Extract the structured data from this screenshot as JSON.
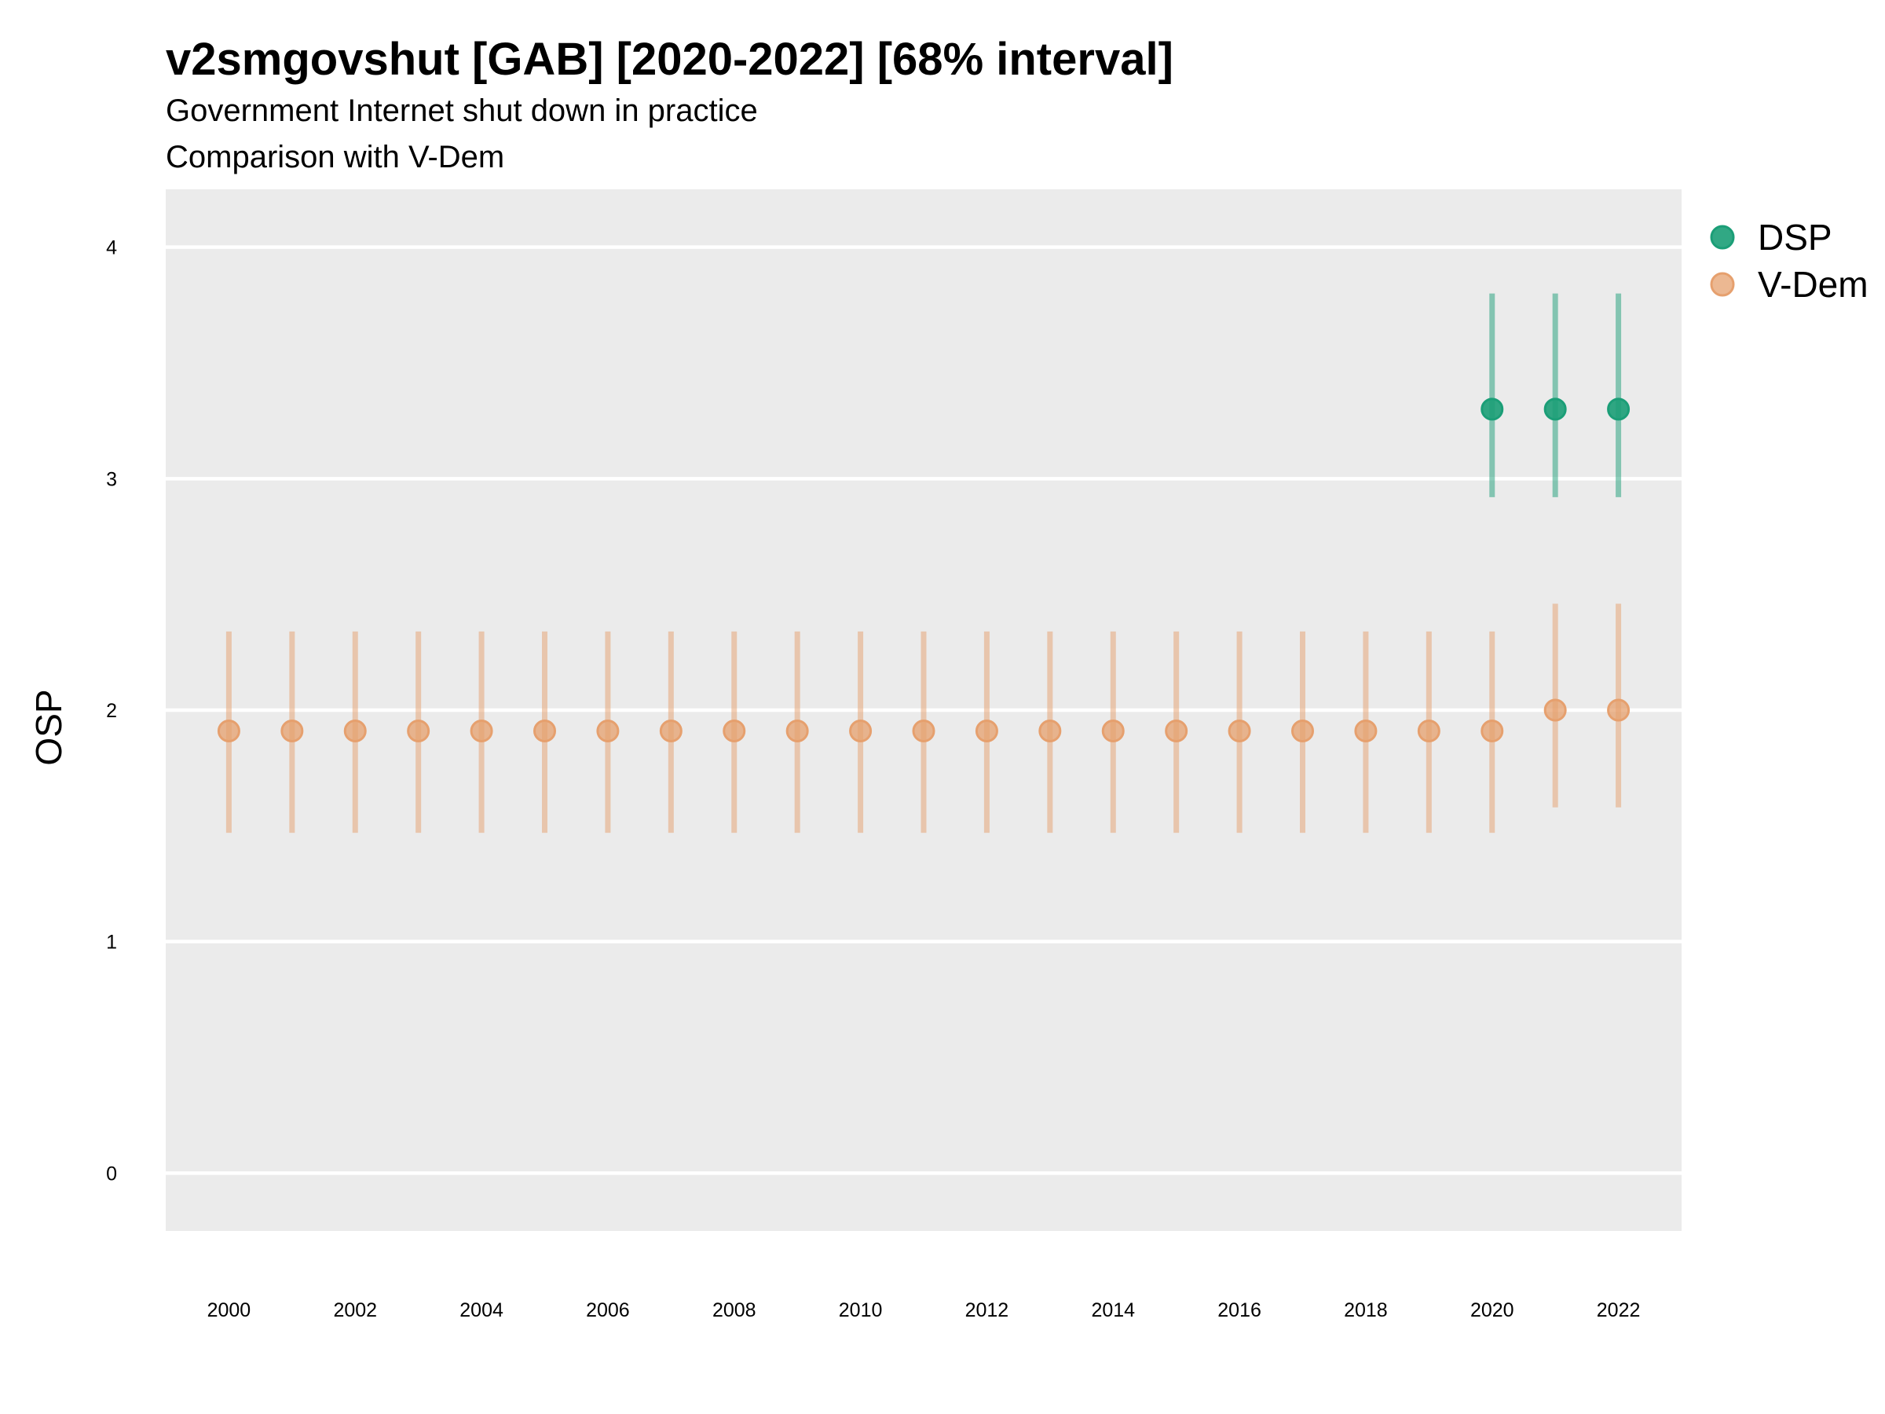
{
  "chart_data": {
    "type": "scatter",
    "title": "v2smgovshut [GAB] [2020-2022] [68% interval]",
    "subtitle_lines": [
      "Government Internet shut down in practice",
      "Comparison with V-Dem"
    ],
    "xlabel": "",
    "ylabel": "OSP",
    "x_ticks": [
      "2000",
      "2002",
      "2004",
      "2006",
      "2008",
      "2010",
      "2012",
      "2014",
      "2016",
      "2018",
      "2020",
      "2022"
    ],
    "y_ticks": [
      "0",
      "1",
      "2",
      "3",
      "4"
    ],
    "xlim": [
      1999,
      2023
    ],
    "ylim": [
      -0.25,
      4.25
    ],
    "grid": true,
    "legend_position": "right",
    "series": [
      {
        "name": "DSP",
        "color": "#1b9e77",
        "points": [
          {
            "x": 2020,
            "y": 3.3,
            "low": 2.92,
            "high": 3.8
          },
          {
            "x": 2021,
            "y": 3.3,
            "low": 2.92,
            "high": 3.8
          },
          {
            "x": 2022,
            "y": 3.3,
            "low": 2.92,
            "high": 3.8
          }
        ]
      },
      {
        "name": "V-Dem",
        "color": "#e6a06e",
        "points": [
          {
            "x": 2000,
            "y": 1.91,
            "low": 1.47,
            "high": 2.34
          },
          {
            "x": 2001,
            "y": 1.91,
            "low": 1.47,
            "high": 2.34
          },
          {
            "x": 2002,
            "y": 1.91,
            "low": 1.47,
            "high": 2.34
          },
          {
            "x": 2003,
            "y": 1.91,
            "low": 1.47,
            "high": 2.34
          },
          {
            "x": 2004,
            "y": 1.91,
            "low": 1.47,
            "high": 2.34
          },
          {
            "x": 2005,
            "y": 1.91,
            "low": 1.47,
            "high": 2.34
          },
          {
            "x": 2006,
            "y": 1.91,
            "low": 1.47,
            "high": 2.34
          },
          {
            "x": 2007,
            "y": 1.91,
            "low": 1.47,
            "high": 2.34
          },
          {
            "x": 2008,
            "y": 1.91,
            "low": 1.47,
            "high": 2.34
          },
          {
            "x": 2009,
            "y": 1.91,
            "low": 1.47,
            "high": 2.34
          },
          {
            "x": 2010,
            "y": 1.91,
            "low": 1.47,
            "high": 2.34
          },
          {
            "x": 2011,
            "y": 1.91,
            "low": 1.47,
            "high": 2.34
          },
          {
            "x": 2012,
            "y": 1.91,
            "low": 1.47,
            "high": 2.34
          },
          {
            "x": 2013,
            "y": 1.91,
            "low": 1.47,
            "high": 2.34
          },
          {
            "x": 2014,
            "y": 1.91,
            "low": 1.47,
            "high": 2.34
          },
          {
            "x": 2015,
            "y": 1.91,
            "low": 1.47,
            "high": 2.34
          },
          {
            "x": 2016,
            "y": 1.91,
            "low": 1.47,
            "high": 2.34
          },
          {
            "x": 2017,
            "y": 1.91,
            "low": 1.47,
            "high": 2.34
          },
          {
            "x": 2018,
            "y": 1.91,
            "low": 1.47,
            "high": 2.34
          },
          {
            "x": 2019,
            "y": 1.91,
            "low": 1.47,
            "high": 2.34
          },
          {
            "x": 2020,
            "y": 1.91,
            "low": 1.47,
            "high": 2.34
          },
          {
            "x": 2021,
            "y": 2.0,
            "low": 1.58,
            "high": 2.46
          },
          {
            "x": 2022,
            "y": 2.0,
            "low": 1.58,
            "high": 2.46
          }
        ]
      }
    ]
  }
}
